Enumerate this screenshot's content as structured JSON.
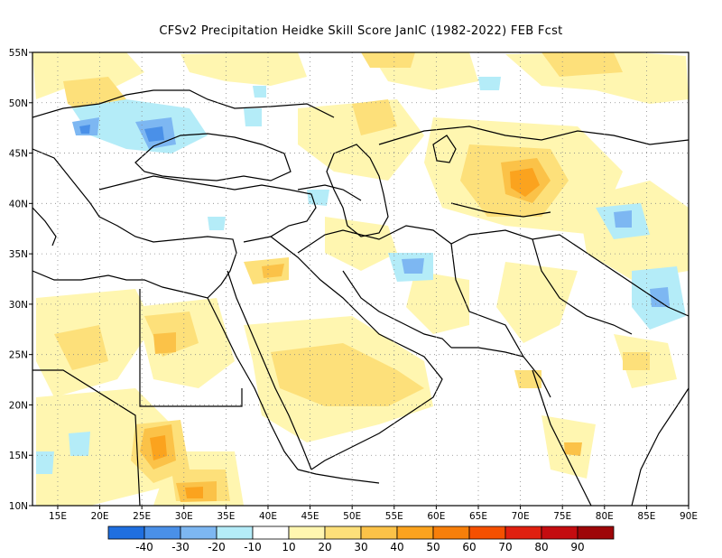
{
  "title": "CFSv2  Precipitation Heidke Skill Score JanIC (1982-2022) FEB Fcst",
  "map": {
    "lon_range": [
      12,
      90
    ],
    "lat_range": [
      10,
      55
    ],
    "x_ticks": [
      "15E",
      "20E",
      "25E",
      "30E",
      "35E",
      "40E",
      "45E",
      "50E",
      "55E",
      "60E",
      "65E",
      "70E",
      "75E",
      "80E",
      "85E",
      "90E"
    ],
    "y_ticks": [
      "55N",
      "50N",
      "45N",
      "40N",
      "35N",
      "30N",
      "25N",
      "20N",
      "15N",
      "10N"
    ],
    "grid": "dotted"
  },
  "colorbar": {
    "labels": [
      "-40",
      "-30",
      "-20",
      "-10",
      "10",
      "20",
      "30",
      "40",
      "50",
      "60",
      "70",
      "80",
      "90"
    ],
    "colors": [
      "#1f6fe0",
      "#4a90e8",
      "#7db7f2",
      "#b4ecf8",
      "#ffffff",
      "#fff6b0",
      "#fde07a",
      "#fbc248",
      "#fba31e",
      "#f77f0a",
      "#f55000",
      "#e02010",
      "#c40c10",
      "#9e0608"
    ]
  },
  "field_regions": [
    {
      "lon": 38.5,
      "lat": 21.5,
      "score": 20
    },
    {
      "lon": 24.5,
      "lat": 15.5,
      "score": 40
    },
    {
      "lon": 31.0,
      "lat": 11.5,
      "score": 40
    },
    {
      "lon": 70.5,
      "lat": 42.0,
      "score": 40
    },
    {
      "lon": 73.0,
      "lat": 40.5,
      "score": 20
    },
    {
      "lon": 17.0,
      "lat": 47.0,
      "score": -30
    },
    {
      "lon": 27.0,
      "lat": 47.0,
      "score": -30
    },
    {
      "lon": 52.5,
      "lat": 34.0,
      "score": -20
    },
    {
      "lon": 80.5,
      "lat": 39.5,
      "score": -30
    },
    {
      "lon": 21.5,
      "lat": 19.5,
      "score": 20
    },
    {
      "lon": 36.0,
      "lat": 33.5,
      "score": 30
    },
    {
      "lon": 80.5,
      "lat": 31.0,
      "score": -20
    }
  ]
}
